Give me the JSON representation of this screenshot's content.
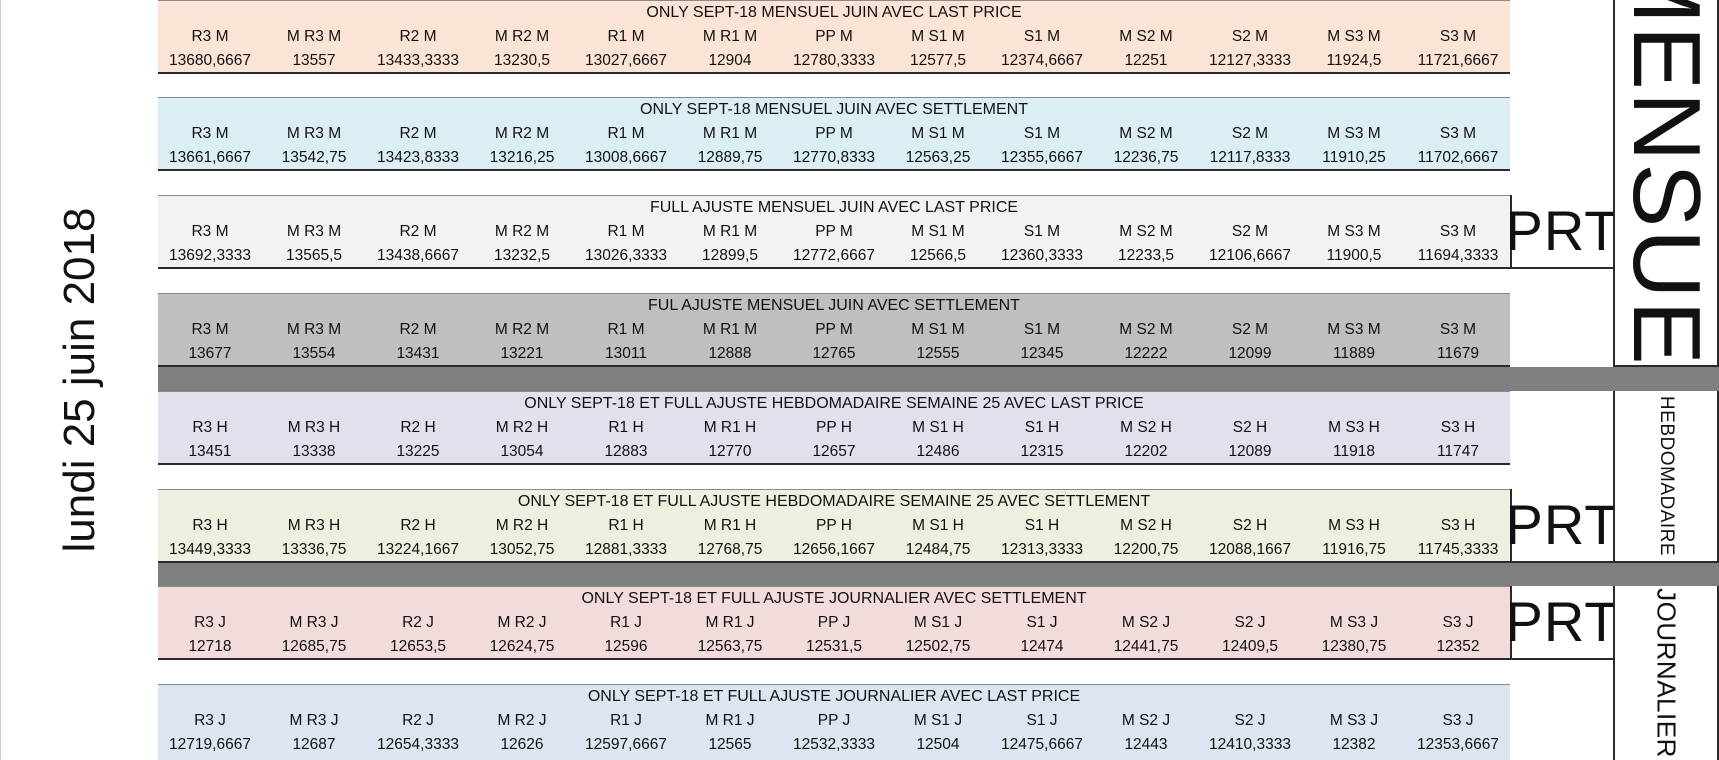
{
  "date_label": "lundi 25 juin 2018",
  "prt_label": "PRT",
  "sections": {
    "mensuel": "MENSUEL",
    "hebdomadaire": "HEBDOMADAIRE",
    "journalier": "JOURNALIER"
  },
  "colors": {
    "t1": "#fbe4d5",
    "t2": "#daeef3",
    "t3": "#f2f2f2",
    "t4": "#bfbfbf",
    "t5": "#e4dfec",
    "t6": "#ebf1de",
    "t7": "#f2dcdb",
    "t8": "#dce6f1",
    "band": "#7f7f7f"
  },
  "tables": [
    {
      "title": "ONLY SEPT-18 MENSUEL JUIN AVEC LAST PRICE",
      "headers": [
        "R3 M",
        "M R3 M",
        "R2 M",
        "M R2 M",
        "R1 M",
        "M R1 M",
        "PP M",
        "M S1 M",
        "S1 M",
        "M S2 M",
        "S2 M",
        "M S3 M",
        "S3 M"
      ],
      "values": [
        "13680,6667",
        "13557",
        "13433,3333",
        "13230,5",
        "13027,6667",
        "12904",
        "12780,3333",
        "12577,5",
        "12374,6667",
        "12251",
        "12127,3333",
        "11924,5",
        "11721,6667"
      ]
    },
    {
      "title": "ONLY SEPT-18 MENSUEL JUIN AVEC SETTLEMENT",
      "headers": [
        "R3 M",
        "M R3 M",
        "R2 M",
        "M R2 M",
        "R1 M",
        "M R1 M",
        "PP M",
        "M S1 M",
        "S1 M",
        "M S2 M",
        "S2 M",
        "M S3 M",
        "S3 M"
      ],
      "values": [
        "13661,6667",
        "13542,75",
        "13423,8333",
        "13216,25",
        "13008,6667",
        "12889,75",
        "12770,8333",
        "12563,25",
        "12355,6667",
        "12236,75",
        "12117,8333",
        "11910,25",
        "11702,6667"
      ]
    },
    {
      "title": "FULL AJUSTE MENSUEL JUIN AVEC LAST PRICE",
      "headers": [
        "R3 M",
        "M R3 M",
        "R2 M",
        "M R2 M",
        "R1 M",
        "M R1 M",
        "PP M",
        "M S1 M",
        "S1 M",
        "M S2 M",
        "S2 M",
        "M S3 M",
        "S3 M"
      ],
      "values": [
        "13692,3333",
        "13565,5",
        "13438,6667",
        "13232,5",
        "13026,3333",
        "12899,5",
        "12772,6667",
        "12566,5",
        "12360,3333",
        "12233,5",
        "12106,6667",
        "11900,5",
        "11694,3333"
      ]
    },
    {
      "title": "FUL AJUSTE MENSUEL JUIN AVEC SETTLEMENT",
      "headers": [
        "R3 M",
        "M R3 M",
        "R2 M",
        "M R2 M",
        "R1 M",
        "M R1 M",
        "PP M",
        "M S1 M",
        "S1 M",
        "M S2 M",
        "S2 M",
        "M S3 M",
        "S3 M"
      ],
      "values": [
        "13677",
        "13554",
        "13431",
        "13221",
        "13011",
        "12888",
        "12765",
        "12555",
        "12345",
        "12222",
        "12099",
        "11889",
        "11679"
      ]
    },
    {
      "title": "ONLY SEPT-18 ET FULL AJUSTE HEBDOMADAIRE SEMAINE 25 AVEC LAST PRICE",
      "headers": [
        "R3 H",
        "M R3 H",
        "R2 H",
        "M R2 H",
        "R1 H",
        "M R1 H",
        "PP H",
        "M S1 H",
        "S1 H",
        "M S2 H",
        "S2 H",
        "M S3 H",
        "S3 H"
      ],
      "values": [
        "13451",
        "13338",
        "13225",
        "13054",
        "12883",
        "12770",
        "12657",
        "12486",
        "12315",
        "12202",
        "12089",
        "11918",
        "11747"
      ]
    },
    {
      "title": "ONLY SEPT-18  ET FULL AJUSTE HEBDOMADAIRE SEMAINE 25 AVEC SETTLEMENT",
      "headers": [
        "R3 H",
        "M R3 H",
        "R2 H",
        "M R2 H",
        "R1 H",
        "M R1 H",
        "PP H",
        "M S1 H",
        "S1 H",
        "M S2 H",
        "S2 H",
        "M S3 H",
        "S3 H"
      ],
      "values": [
        "13449,3333",
        "13336,75",
        "13224,1667",
        "13052,75",
        "12881,3333",
        "12768,75",
        "12656,1667",
        "12484,75",
        "12313,3333",
        "12200,75",
        "12088,1667",
        "11916,75",
        "11745,3333"
      ]
    },
    {
      "title": "ONLY SEPT-18 ET FULL AJUSTE JOURNALIER AVEC SETTLEMENT",
      "headers": [
        "R3 J",
        "M R3 J",
        "R2 J",
        "M R2 J",
        "R1 J",
        "M R1 J",
        "PP J",
        "M S1 J",
        "S1 J",
        "M S2 J",
        "S2 J",
        "M S3 J",
        "S3 J"
      ],
      "values": [
        "12718",
        "12685,75",
        "12653,5",
        "12624,75",
        "12596",
        "12563,75",
        "12531,5",
        "12502,75",
        "12474",
        "12441,75",
        "12409,5",
        "12380,75",
        "12352"
      ]
    },
    {
      "title": "ONLY SEPT-18 ET FULL AJUSTE JOURNALIER AVEC LAST PRICE",
      "headers": [
        "R3 J",
        "M R3 J",
        "R2 J",
        "M R2 J",
        "R1 J",
        "M R1 J",
        "PP J",
        "M S1 J",
        "S1 J",
        "M S2 J",
        "S2 J",
        "M S3 J",
        "S3 J"
      ],
      "values": [
        "12719,6667",
        "12687",
        "12654,3333",
        "12626",
        "12597,6667",
        "12565",
        "12532,3333",
        "12504",
        "12475,6667",
        "12443",
        "12410,3333",
        "12382",
        "12353,6667"
      ]
    }
  ]
}
